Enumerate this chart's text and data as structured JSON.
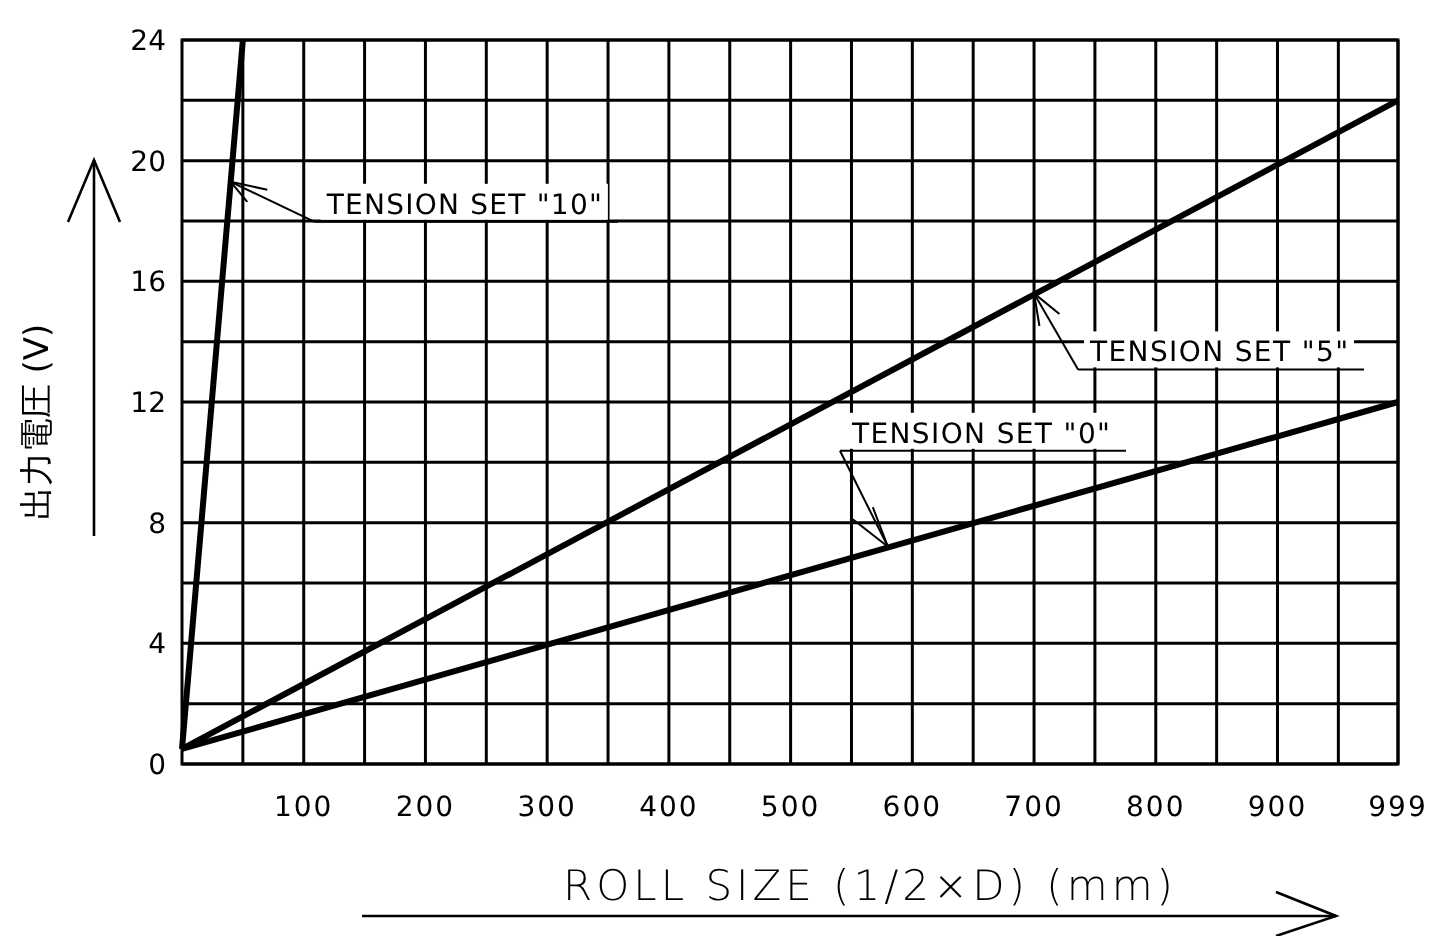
{
  "chart_data": {
    "type": "line",
    "xlabel": "ROLL SIZE  (1/2×D)   (mm)",
    "ylabel": "出力電圧  (V)",
    "xlim": [
      0,
      999
    ],
    "ylim": [
      0,
      24
    ],
    "xticks": [
      {
        "value": 50,
        "label": null
      },
      100,
      {
        "value": 150,
        "label": null
      },
      200,
      {
        "value": 250,
        "label": null
      },
      300,
      {
        "value": 350,
        "label": null
      },
      400,
      {
        "value": 450,
        "label": null
      },
      500,
      {
        "value": 550,
        "label": null
      },
      600,
      {
        "value": 650,
        "label": null
      },
      700,
      {
        "value": 750,
        "label": null
      },
      800,
      {
        "value": 850,
        "label": null
      },
      900,
      {
        "value": 950,
        "label": null
      },
      999
    ],
    "yticks": [
      0,
      {
        "value": 2,
        "label": null
      },
      4,
      {
        "value": 6,
        "label": null
      },
      8,
      {
        "value": 10,
        "label": null
      },
      12,
      {
        "value": 14,
        "label": null
      },
      16,
      {
        "value": 18,
        "label": null
      },
      20,
      {
        "value": 22,
        "label": null
      },
      24
    ],
    "grid": true,
    "line_style": "solid",
    "series": [
      {
        "color": "#000000",
        "x": [
          0,
          50
        ],
        "values": [
          0.5,
          24
        ]
      },
      {
        "color": "#000000",
        "x": [
          0,
          999
        ],
        "values": [
          0.5,
          22
        ]
      },
      {
        "color": "#000000",
        "x": [
          0,
          999
        ],
        "values": [
          0.5,
          12
        ]
      }
    ],
    "annotations": [
      {
        "text": "TENSION SET \"10\"",
        "x": 40,
        "y": 19.3
      },
      {
        "text": "TENSION SET \"5\"",
        "x": 700,
        "y": 15.6
      },
      {
        "text": "TENSION SET \"0\"",
        "x": 580,
        "y": 7.2
      }
    ]
  }
}
